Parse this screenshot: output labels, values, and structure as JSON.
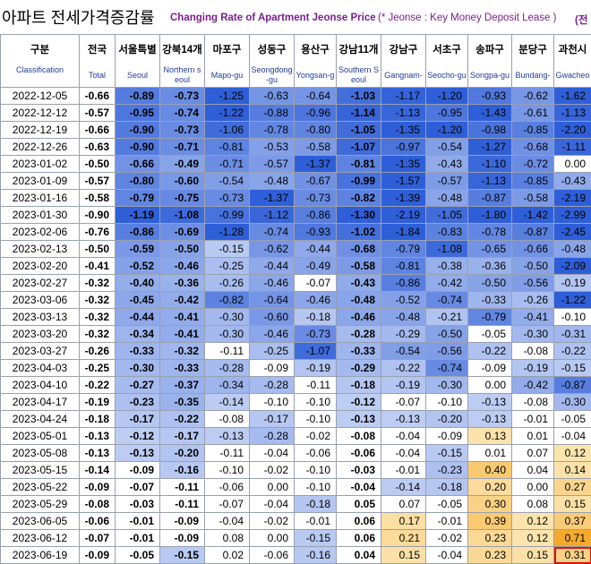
{
  "title": {
    "korean": "아파트 전세가격증감률",
    "english": "Changing Rate of Apartment Jeonse Price",
    "note": "(* Jeonse : Key Money Deposit Lease )",
    "right_fragment": "(전"
  },
  "columns": [
    {
      "ko": "구분",
      "en": "Classification"
    },
    {
      "ko": "전국",
      "en": "Total"
    },
    {
      "ko": "서울특별",
      "en": "Seoul"
    },
    {
      "ko": "강북14개",
      "en": "Northern seoul"
    },
    {
      "ko": "마포구",
      "en": "Mapo-gu"
    },
    {
      "ko": "성동구",
      "en": "Seongdong-gu"
    },
    {
      "ko": "용산구",
      "en": "Yongsan-gu"
    },
    {
      "ko": "강남11개",
      "en": "Southern Seoul"
    },
    {
      "ko": "강남구",
      "en": "Gangnam-gu"
    },
    {
      "ko": "서초구",
      "en": "Seocho-gu"
    },
    {
      "ko": "송파구",
      "en": "Songpa-gu"
    },
    {
      "ko": "분당구",
      "en": "Bundang-gu"
    },
    {
      "ko": "과천시",
      "en": "Gwacheon"
    }
  ],
  "rows": [
    {
      "date": "2022-12-05",
      "values": [
        "-0.66",
        "-0.89",
        "-0.73",
        "-1.25",
        "-0.63",
        "-0.64",
        "-1.03",
        "-1.17",
        "-1.20",
        "-0.93",
        "-0.62",
        "-1.62"
      ]
    },
    {
      "date": "2022-12-12",
      "values": [
        "-0.57",
        "-0.95",
        "-0.74",
        "-1.22",
        "-0.88",
        "-0.96",
        "-1.14",
        "-1.13",
        "-0.95",
        "-1.43",
        "-0.61",
        "-1.13"
      ]
    },
    {
      "date": "2022-12-19",
      "values": [
        "-0.66",
        "-0.90",
        "-0.73",
        "-1.06",
        "-0.78",
        "-0.80",
        "-1.05",
        "-1.35",
        "-1.20",
        "-0.98",
        "-0.85",
        "-2.20"
      ]
    },
    {
      "date": "2022-12-26",
      "values": [
        "-0.63",
        "-0.90",
        "-0.71",
        "-0.81",
        "-0.53",
        "-0.58",
        "-1.07",
        "-0.97",
        "-0.54",
        "-1.27",
        "-0.68",
        "-1.11"
      ]
    },
    {
      "date": "2023-01-02",
      "values": [
        "-0.50",
        "-0.66",
        "-0.49",
        "-0.71",
        "-0.57",
        "-1.37",
        "-0.81",
        "-1.35",
        "-0.43",
        "-1.10",
        "-0.72",
        "0.00"
      ]
    },
    {
      "date": "2023-01-09",
      "values": [
        "-0.57",
        "-0.80",
        "-0.60",
        "-0.54",
        "-0.48",
        "-0.67",
        "-0.99",
        "-1.57",
        "-0.57",
        "-1.13",
        "-0.85",
        "-0.43"
      ]
    },
    {
      "date": "2023-01-16",
      "values": [
        "-0.58",
        "-0.79",
        "-0.75",
        "-0.73",
        "-1.37",
        "-0.73",
        "-0.82",
        "-1.39",
        "-0.48",
        "-0.87",
        "-0.58",
        "-2.19"
      ]
    },
    {
      "date": "2023-01-30",
      "values": [
        "-0.90",
        "-1.19",
        "-1.08",
        "-0.99",
        "-1.12",
        "-0.86",
        "-1.30",
        "-2.19",
        "-1.05",
        "-1.80",
        "-1.42",
        "-2.99"
      ]
    },
    {
      "date": "2023-02-06",
      "values": [
        "-0.76",
        "-0.86",
        "-0.69",
        "-1.28",
        "-0.74",
        "-0.93",
        "-1.02",
        "-1.84",
        "-0.83",
        "-0.78",
        "-0.87",
        "-2.45"
      ]
    },
    {
      "date": "2023-02-13",
      "values": [
        "-0.50",
        "-0.59",
        "-0.50",
        "-0.15",
        "-0.62",
        "-0.44",
        "-0.68",
        "-0.79",
        "-1.08",
        "-0.65",
        "-0.66",
        "-0.48"
      ]
    },
    {
      "date": "2023-02-20",
      "values": [
        "-0.41",
        "-0.52",
        "-0.46",
        "-0.25",
        "-0.44",
        "-0.49",
        "-0.58",
        "-0.81",
        "-0.38",
        "-0.36",
        "-0.50",
        "-2.09"
      ]
    },
    {
      "date": "2023-02-27",
      "values": [
        "-0.32",
        "-0.40",
        "-0.36",
        "-0.26",
        "-0.46",
        "-0.07",
        "-0.43",
        "-0.86",
        "-0.42",
        "-0.50",
        "-0.56",
        "-0.19"
      ]
    },
    {
      "date": "2023-03-06",
      "values": [
        "-0.32",
        "-0.45",
        "-0.42",
        "-0.82",
        "-0.64",
        "-0.46",
        "-0.48",
        "-0.52",
        "-0.74",
        "-0.33",
        "-0.26",
        "-1.22"
      ]
    },
    {
      "date": "2023-03-13",
      "values": [
        "-0.32",
        "-0.44",
        "-0.41",
        "-0.30",
        "-0.60",
        "-0.18",
        "-0.46",
        "-0.48",
        "-0.21",
        "-0.79",
        "-0.41",
        "-0.10"
      ]
    },
    {
      "date": "2023-03-20",
      "values": [
        "-0.32",
        "-0.34",
        "-0.41",
        "-0.30",
        "-0.46",
        "-0.73",
        "-0.28",
        "-0.29",
        "-0.50",
        "-0.05",
        "-0.30",
        "-0.31"
      ]
    },
    {
      "date": "2023-03-27",
      "values": [
        "-0.26",
        "-0.33",
        "-0.32",
        "-0.11",
        "-0.25",
        "-1.07",
        "-0.33",
        "-0.54",
        "-0.56",
        "-0.22",
        "-0.08",
        "-0.22"
      ]
    },
    {
      "date": "2023-04-03",
      "values": [
        "-0.25",
        "-0.30",
        "-0.33",
        "-0.28",
        "-0.09",
        "-0.19",
        "-0.29",
        "-0.22",
        "-0.74",
        "-0.09",
        "-0.19",
        "-0.15"
      ]
    },
    {
      "date": "2023-04-10",
      "values": [
        "-0.22",
        "-0.27",
        "-0.37",
        "-0.34",
        "-0.28",
        "-0.11",
        "-0.18",
        "-0.19",
        "-0.30",
        "0.00",
        "-0.42",
        "-0.87"
      ]
    },
    {
      "date": "2023-04-17",
      "values": [
        "-0.19",
        "-0.23",
        "-0.35",
        "-0.14",
        "-0.10",
        "-0.10",
        "-0.12",
        "-0.07",
        "-0.10",
        "-0.13",
        "-0.08",
        "-0.30"
      ]
    },
    {
      "date": "2023-04-24",
      "values": [
        "-0.18",
        "-0.17",
        "-0.22",
        "-0.08",
        "-0.17",
        "-0.10",
        "-0.13",
        "-0.13",
        "-0.20",
        "-0.13",
        "-0.01",
        "-0.05"
      ]
    },
    {
      "date": "2023-05-01",
      "values": [
        "-0.13",
        "-0.12",
        "-0.17",
        "-0.13",
        "-0.28",
        "-0.02",
        "-0.08",
        "-0.04",
        "-0.09",
        "0.13",
        "0.01",
        "-0.04"
      ]
    },
    {
      "date": "2023-05-08",
      "values": [
        "-0.13",
        "-0.13",
        "-0.20",
        "-0.11",
        "-0.04",
        "-0.06",
        "-0.06",
        "-0.04",
        "-0.15",
        "0.01",
        "0.07",
        "0.12"
      ]
    },
    {
      "date": "2023-05-15",
      "values": [
        "-0.14",
        "-0.09",
        "-0.16",
        "-0.10",
        "-0.02",
        "-0.10",
        "-0.03",
        "-0.01",
        "-0.23",
        "0.40",
        "0.04",
        "0.14"
      ]
    },
    {
      "date": "2023-05-22",
      "values": [
        "-0.09",
        "-0.07",
        "-0.11",
        "-0.06",
        "0.00",
        "-0.10",
        "-0.04",
        "-0.14",
        "-0.18",
        "0.20",
        "0.00",
        "0.27"
      ]
    },
    {
      "date": "2023-05-29",
      "values": [
        "-0.08",
        "-0.03",
        "-0.11",
        "-0.07",
        "-0.04",
        "-0.18",
        "0.05",
        "0.07",
        "-0.05",
        "0.30",
        "0.08",
        "0.15"
      ]
    },
    {
      "date": "2023-06-05",
      "values": [
        "-0.06",
        "-0.01",
        "-0.09",
        "-0.04",
        "-0.02",
        "-0.01",
        "0.06",
        "0.17",
        "-0.01",
        "0.39",
        "0.12",
        "0.37"
      ]
    },
    {
      "date": "2023-06-12",
      "values": [
        "-0.07",
        "-0.01",
        "-0.09",
        "0.08",
        "0.00",
        "-0.15",
        "0.06",
        "0.21",
        "-0.02",
        "0.23",
        "0.12",
        "0.71"
      ]
    },
    {
      "date": "2023-06-19",
      "values": [
        "-0.09",
        "-0.05",
        "-0.15",
        "0.02",
        "-0.06",
        "-0.16",
        "0.04",
        "0.15",
        "-0.04",
        "0.23",
        "0.15",
        "0.31"
      ]
    }
  ],
  "bold_columns": [
    2,
    3,
    7
  ],
  "highlight": {
    "row": 27,
    "col": 12,
    "color": "#e01010"
  },
  "colors": {
    "neg_dark": "#2f5fd8",
    "neg_light": "#d6e0f7",
    "pos_dark": "#f5a623",
    "pos_light": "#fdf0c8",
    "header_en": "#1f3a9a",
    "title_en": "#7b1f8f"
  }
}
